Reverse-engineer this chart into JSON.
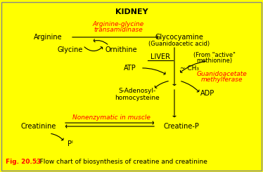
{
  "bg_color": "#FFFF00",
  "title": "KIDNEY",
  "enzyme1": "Arginine-glycine\ntransamidinase",
  "enzyme2": "Guanidoacetate\nmethylferase",
  "nonenzymatic": "Nonenzymatic in muscle",
  "fig_caption_red": "Fig. 20.53",
  "fig_caption_black": " : Flow chart of biosynthesis of creatine and creatinine"
}
